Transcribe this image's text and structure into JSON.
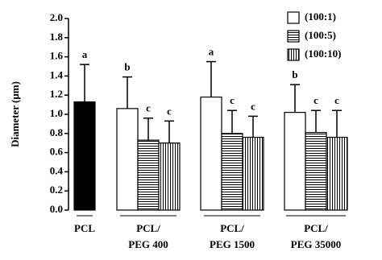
{
  "chart_data": {
    "type": "bar",
    "y_label": "Diameter (μm)",
    "ylim": [
      0,
      2.0
    ],
    "yticks": [
      {
        "value": 0,
        "label": "0.0"
      },
      {
        "value": 0.2,
        "label": "0.2"
      },
      {
        "value": 0.4,
        "label": "0.4"
      },
      {
        "value": 0.6,
        "label": "0.6"
      },
      {
        "value": 0.8,
        "label": "0.8"
      },
      {
        "value": 1.0,
        "label": "1.0"
      },
      {
        "value": 1.2,
        "label": "1.2"
      },
      {
        "value": 1.4,
        "label": "1.4"
      },
      {
        "value": 1.6,
        "label": "1.6"
      },
      {
        "value": 1.8,
        "label": "1.8"
      },
      {
        "value": 2.0,
        "label": "2.0"
      }
    ],
    "categories": [
      [
        "PCL"
      ],
      [
        "PCL/",
        "PEG 400"
      ],
      [
        "PCL/",
        "PEG 1500"
      ],
      [
        "PCL/",
        "PEG 35000"
      ]
    ],
    "control": {
      "value": 1.13,
      "error": 0.39,
      "letter": "a",
      "color": "#000000"
    },
    "series": [
      {
        "name": "(100:1)",
        "pattern": "none",
        "values": [
          null,
          1.06,
          1.18,
          1.02
        ],
        "errors": [
          null,
          0.33,
          0.37,
          0.29
        ],
        "letters": [
          null,
          "b",
          "a",
          "b"
        ]
      },
      {
        "name": "(100:5)",
        "pattern": "horizontal",
        "values": [
          null,
          0.73,
          0.8,
          0.81
        ],
        "errors": [
          null,
          0.23,
          0.24,
          0.23
        ],
        "letters": [
          null,
          "c",
          "c",
          "c"
        ]
      },
      {
        "name": "(100:10)",
        "pattern": "vertical",
        "values": [
          null,
          0.7,
          0.76,
          0.76
        ],
        "errors": [
          null,
          0.23,
          0.22,
          0.28
        ],
        "letters": [
          null,
          "c",
          "c",
          "c"
        ]
      }
    ],
    "legend": "upper right"
  }
}
